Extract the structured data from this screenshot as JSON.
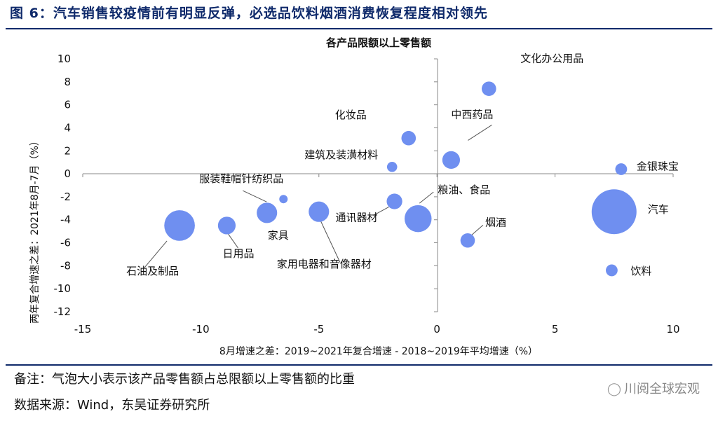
{
  "figure": {
    "title": "图 6：汽车销售较疫情前有明显反弹，必选品饮料烟酒消费恢复程度相对领先",
    "note": "备注：气泡大小表示该产品零售额占总限额以上零售额的比重",
    "source": "数据来源：Wind，东吴证券研究所",
    "watermark": "川阅全球宏观",
    "watermark_icon": "wechat-icon"
  },
  "chart_data": {
    "type": "scatter",
    "title": "各产品限额以上零售额",
    "xlabel": "8月增速之差：2019~2021年复合增速 - 2018~2019年平均增速（%）",
    "ylabel": "两年复合增速之差：2021年8月-7月（%）",
    "xlim": [
      -15,
      10
    ],
    "ylim": [
      -12,
      10
    ],
    "xticks": [
      -15,
      -10,
      -5,
      0,
      5,
      10
    ],
    "yticks": [
      10,
      8,
      6,
      4,
      2,
      0,
      -2,
      -4,
      -6,
      -8,
      -10,
      -12
    ],
    "bubble_color": "#6f8ff0",
    "grid": false,
    "legend": "none",
    "points": [
      {
        "name": "文化办公用品",
        "x": 2.2,
        "y": 7.4,
        "size": 0.6
      },
      {
        "name": "化妆品",
        "x": -1.2,
        "y": 3.1,
        "size": 0.6
      },
      {
        "name": "中西药品",
        "x": 0.6,
        "y": 1.2,
        "size": 0.9
      },
      {
        "name": "建筑及装潢材料",
        "x": -1.9,
        "y": 0.6,
        "size": 0.3
      },
      {
        "name": "金银珠宝",
        "x": 7.8,
        "y": 0.4,
        "size": 0.4
      },
      {
        "name": "服装鞋帽针纺织品",
        "x": -6.5,
        "y": -2.2,
        "size": 0.2
      },
      {
        "name": "粮油、食品",
        "x": -0.8,
        "y": -3.9,
        "size": 2.1
      },
      {
        "name": "通讯器材",
        "x": -1.8,
        "y": -2.4,
        "size": 0.7
      },
      {
        "name": "家具",
        "x": -7.2,
        "y": -3.4,
        "size": 1.2
      },
      {
        "name": "家用电器和音像器材",
        "x": -5.0,
        "y": -3.3,
        "size": 1.2
      },
      {
        "name": "石油及制品",
        "x": -10.9,
        "y": -4.5,
        "size": 2.7
      },
      {
        "name": "日用品",
        "x": -8.9,
        "y": -4.5,
        "size": 0.9
      },
      {
        "name": "烟酒",
        "x": 1.3,
        "y": -5.8,
        "size": 0.6
      },
      {
        "name": "汽车",
        "x": 7.5,
        "y": -3.3,
        "size": 5.8
      },
      {
        "name": "饮料",
        "x": 7.4,
        "y": -8.4,
        "size": 0.4
      }
    ]
  }
}
